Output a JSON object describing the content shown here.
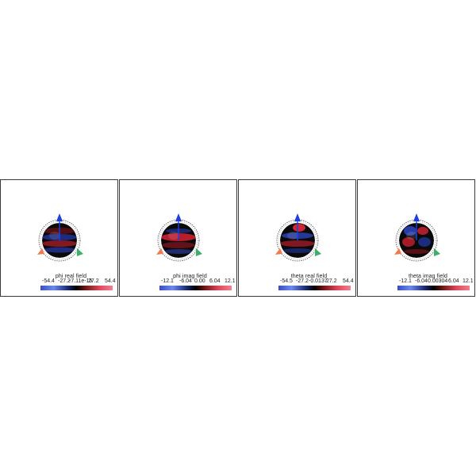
{
  "panels": [
    {
      "field_title": "phi real field",
      "ticks": [
        "-54.4",
        "-27.2",
        "-7.11e-15",
        "27.2",
        "54.4"
      ]
    },
    {
      "field_title": "phi imag field",
      "ticks": [
        "-12.1",
        "-6.04",
        "0.00",
        "6.04",
        "12.1"
      ]
    },
    {
      "field_title": "theta real field",
      "ticks": [
        "-54.5",
        "-27.2",
        "-0.0137",
        "27.2",
        "54.4"
      ]
    },
    {
      "field_title": "theta imag field",
      "ticks": [
        "-12.1",
        "-6.04",
        "0.00304",
        "6.04",
        "12.1"
      ]
    }
  ],
  "colors": {
    "axis_z": "#1f3fe0",
    "axis_x": "#f07a50",
    "axis_y": "#3ab06a",
    "cmap_low": "#3b4cc0",
    "cmap_mid": "#000000",
    "cmap_high": "#e0485a"
  },
  "icons": [
    "z-axis-arrow-icon",
    "x-axis-arrow-icon",
    "y-axis-arrow-icon"
  ]
}
